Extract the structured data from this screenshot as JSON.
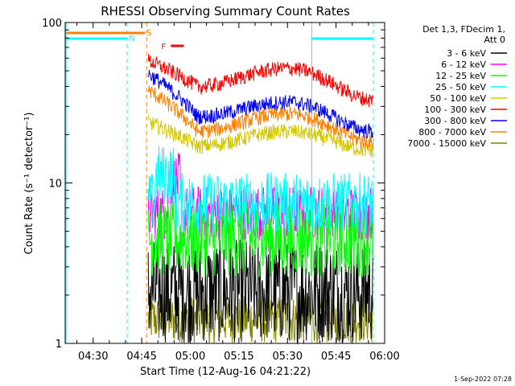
{
  "chart_data": {
    "type": "line",
    "title": "RHESSI Observing Summary Count Rates",
    "xlabel": "Start Time (12-Aug-16 04:21:22)",
    "ylabel": "Count Rate (s⁻¹ detector⁻¹)",
    "y_scale": "log",
    "ylim": [
      1,
      100
    ],
    "xlim_minutes": [
      21.37,
      120.0
    ],
    "x_ticks": [
      {
        "label": "04:30",
        "minute": 30
      },
      {
        "label": "04:45",
        "minute": 45
      },
      {
        "label": "05:00",
        "minute": 60
      },
      {
        "label": "05:15",
        "minute": 75
      },
      {
        "label": "05:30",
        "minute": 90
      },
      {
        "label": "05:45",
        "minute": 105
      },
      {
        "label": "06:00",
        "minute": 120
      }
    ],
    "y_ticks": [
      {
        "label": "1",
        "value": 1
      },
      {
        "label": "10",
        "value": 10
      },
      {
        "label": "100",
        "value": 100
      }
    ],
    "legend_header": [
      "Det 1,3, FDecim 1,",
      "Att 0"
    ],
    "legend_position": "right",
    "flags": [
      {
        "label": "N",
        "color": "#00ffff",
        "x_start": 21.37,
        "x_end": 40.5,
        "x_marker": 40.5
      },
      {
        "label": "S",
        "color": "#ff8000",
        "x_start": 21.37,
        "x_end": 46.0,
        "x_marker": 46.5
      },
      {
        "label": "F",
        "color": "#ff0000",
        "x_start": 54.0,
        "x_end": 58.0
      },
      {
        "label": "",
        "color": "#00ffff",
        "x_start": 97.5,
        "x_end": 116.5,
        "x_marker": 116.5,
        "x_marker2": 97.5
      }
    ],
    "series": [
      {
        "name": "3 - 6 keV",
        "color": "#000000",
        "mode": "noise",
        "low": 1.0,
        "high": 4.5
      },
      {
        "name": "6 - 12 keV",
        "color": "#ff00ff",
        "mode": "band",
        "center": 6.5,
        "spread": 0.18
      },
      {
        "name": "12 - 25 keV",
        "color": "#00ff00",
        "mode": "band",
        "center": 4.5,
        "spread": 0.25
      },
      {
        "name": "25 - 50 keV",
        "color": "#00ffff",
        "mode": "band",
        "center": 7.5,
        "spread": 0.2
      },
      {
        "name": "50 - 100 keV",
        "color": "#d4c800",
        "mode": "curve",
        "start": 24,
        "dip": 17,
        "peak": 21,
        "end": 16
      },
      {
        "name": "100 - 300 keV",
        "color": "#ff0000",
        "mode": "curve",
        "start": 58,
        "dip": 40,
        "peak": 52,
        "end": 33
      },
      {
        "name": "300 - 800 keV",
        "color": "#0000ff",
        "mode": "curve",
        "start": 48,
        "dip": 26,
        "peak": 32,
        "end": 21
      },
      {
        "name": "800 - 7000 keV",
        "color": "#ff8000",
        "mode": "curve",
        "start": 38,
        "dip": 21,
        "peak": 27,
        "end": 18
      },
      {
        "name": "7000 - 15000 keV",
        "color": "#808000",
        "mode": "noise",
        "low": 1.0,
        "high": 2.0
      }
    ],
    "footer_timestamp": "1-Sep-2022 07:28"
  }
}
